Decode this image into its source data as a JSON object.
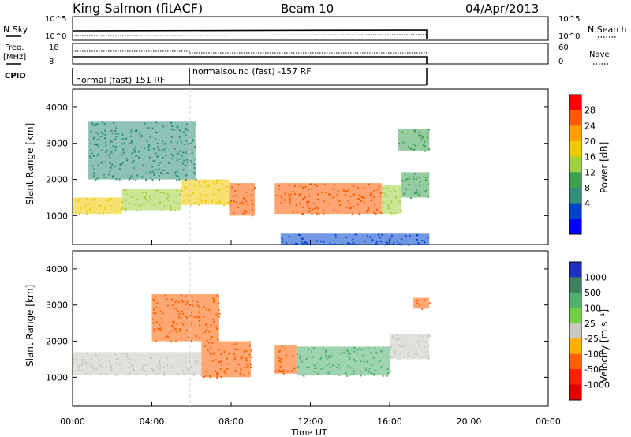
{
  "header": {
    "station": "King Salmon (fitACF)",
    "beam": "Beam 10",
    "date": "04/Apr/2013"
  },
  "strips": {
    "nsky_label": "N.Sky",
    "nsky_ticks": [
      "10^5",
      "10^0"
    ],
    "nsearch_label": "N.Search",
    "nsearch_ticks": [
      "10^5",
      "10^0"
    ],
    "freq_label": "Freq.",
    "freq_unit": "[MHz]",
    "freq_ticks": [
      "18",
      "8"
    ],
    "nave_label": "Nave",
    "nave_ticks": [
      "60",
      "0"
    ],
    "cpid_label": "CPID",
    "cpid_segments": [
      {
        "text": "normal (fast) 151 RF",
        "start": "00:00",
        "end": "05:58"
      },
      {
        "text": "normalsound (fast) -157 RF",
        "start": "05:58",
        "end": "18:00"
      }
    ]
  },
  "chart_data": [
    {
      "type": "heatmap",
      "panel": "power",
      "ylabel": "Slant Range [km]",
      "xlabel": "",
      "xlim_hours": [
        0,
        24
      ],
      "ylim_km": [
        200,
        4500
      ],
      "y_ticks": [
        "1000",
        "2000",
        "3000",
        "4000"
      ],
      "colorbar_label": "Power [dB]",
      "colorbar_ticks": [
        "28",
        "24",
        "20",
        "16",
        "12",
        "8",
        "4"
      ],
      "colorbar_colors": [
        "#ff0000",
        "#ff5a00",
        "#ffa000",
        "#f0c800",
        "#a0d040",
        "#3ca050",
        "#2f8f78",
        "#0044cc",
        "#0000ff"
      ],
      "echo_regions": [
        {
          "t0": 0.0,
          "t1": 2.5,
          "r0": 1050,
          "r1": 1500,
          "level": 16
        },
        {
          "t0": 2.5,
          "t1": 5.5,
          "r0": 1150,
          "r1": 1750,
          "level": 14
        },
        {
          "t0": 5.5,
          "t1": 7.9,
          "r0": 1300,
          "r1": 2000,
          "level": 16
        },
        {
          "t0": 7.9,
          "t1": 9.2,
          "r0": 1000,
          "r1": 1900,
          "level": 24
        },
        {
          "t0": 10.2,
          "t1": 15.6,
          "r0": 1050,
          "r1": 1900,
          "level": 26
        },
        {
          "t0": 15.6,
          "t1": 16.6,
          "r0": 1050,
          "r1": 1850,
          "level": 14
        },
        {
          "t0": 16.6,
          "t1": 18.0,
          "r0": 1500,
          "r1": 2200,
          "level": 10
        },
        {
          "t0": 0.8,
          "t1": 6.2,
          "r0": 2000,
          "r1": 3600,
          "level": 6
        },
        {
          "t0": 16.4,
          "t1": 18.0,
          "r0": 2800,
          "r1": 3400,
          "level": 12
        },
        {
          "t0": 10.5,
          "t1": 18.0,
          "r0": 200,
          "r1": 500,
          "level": 5
        }
      ]
    },
    {
      "type": "heatmap",
      "panel": "velocity",
      "ylabel": "Slant Range [km]",
      "xlabel": "Time UT",
      "xlim_hours": [
        0,
        24
      ],
      "ylim_km": [
        200,
        4500
      ],
      "y_ticks": [
        "1000",
        "2000",
        "3000",
        "4000"
      ],
      "colorbar_label": "Velocity [m s⁻¹]",
      "colorbar_ticks": [
        "1000",
        "500",
        "100",
        "25",
        "-25",
        "-100",
        "-500",
        "-1000"
      ],
      "colorbar_colors": [
        "#2030c0",
        "#3c8060",
        "#50b070",
        "#70d040",
        "#c8c8c0",
        "#ffb000",
        "#ff6000",
        "#ff2000",
        "#e00000"
      ],
      "echo_regions": [
        {
          "t0": 0.0,
          "t1": 6.5,
          "r0": 1050,
          "r1": 1700,
          "velocity": 0
        },
        {
          "t0": 6.5,
          "t1": 9.0,
          "r0": 1000,
          "r1": 2000,
          "velocity": -400
        },
        {
          "t0": 10.2,
          "t1": 11.3,
          "r0": 1100,
          "r1": 1900,
          "velocity": -250
        },
        {
          "t0": 11.3,
          "t1": 16.0,
          "r0": 1050,
          "r1": 1850,
          "velocity": 150
        },
        {
          "t0": 16.0,
          "t1": 18.0,
          "r0": 1500,
          "r1": 2200,
          "velocity": 0
        },
        {
          "t0": 4.0,
          "t1": 7.4,
          "r0": 2000,
          "r1": 3300,
          "velocity": -500
        },
        {
          "t0": 17.2,
          "t1": 18.0,
          "r0": 2900,
          "r1": 3200,
          "velocity": -400
        }
      ]
    }
  ],
  "time_ticks": [
    "00:00",
    "04:00",
    "08:00",
    "12:00",
    "16:00",
    "20:00",
    "00:00"
  ]
}
